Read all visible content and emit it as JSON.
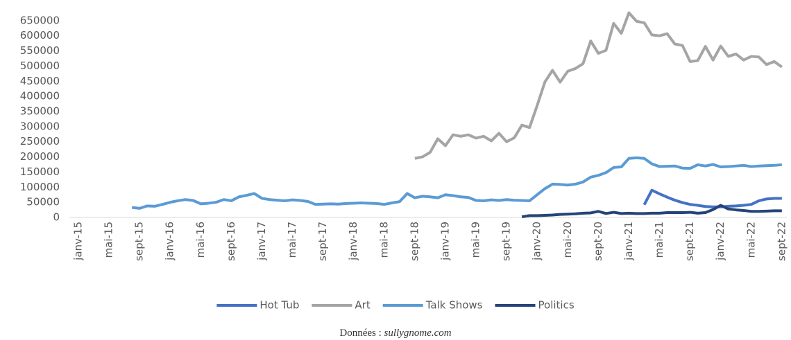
{
  "chart_data": {
    "type": "line",
    "categories": [
      "janv-15",
      null,
      null,
      null,
      "mai-15",
      null,
      null,
      null,
      "sept-15",
      null,
      null,
      null,
      "janv-16",
      null,
      null,
      null,
      "mai-16",
      null,
      null,
      null,
      "sept-16",
      null,
      null,
      null,
      "janv-17",
      null,
      null,
      null,
      "mai-17",
      null,
      null,
      null,
      "sept-17",
      null,
      null,
      null,
      "janv-18",
      null,
      null,
      null,
      "mai-18",
      null,
      null,
      null,
      "sept-18",
      null,
      null,
      null,
      "janv-19",
      null,
      null,
      null,
      "mai-19",
      null,
      null,
      null,
      "sept-19",
      null,
      null,
      null,
      "janv-20",
      null,
      null,
      null,
      "mai-20",
      null,
      null,
      null,
      "sept-20",
      null,
      null,
      null,
      "janv-21",
      null,
      null,
      null,
      "mai-21",
      null,
      null,
      null,
      "sept-21",
      null,
      null,
      null,
      "janv-22",
      null,
      null,
      null,
      "mai-22",
      null,
      null,
      null,
      "sept-22"
    ],
    "series": [
      {
        "name": "Hot Tub",
        "color": "#4472c4",
        "values": [
          null,
          null,
          null,
          null,
          null,
          null,
          null,
          null,
          null,
          null,
          null,
          null,
          null,
          null,
          null,
          null,
          null,
          null,
          null,
          null,
          null,
          null,
          null,
          null,
          null,
          null,
          null,
          null,
          null,
          null,
          null,
          null,
          null,
          null,
          null,
          null,
          null,
          null,
          null,
          null,
          null,
          null,
          null,
          null,
          null,
          null,
          null,
          null,
          null,
          null,
          null,
          null,
          null,
          null,
          null,
          null,
          null,
          null,
          null,
          null,
          null,
          null,
          null,
          null,
          null,
          null,
          null,
          null,
          null,
          null,
          null,
          null,
          null,
          null,
          42000,
          90000,
          78000,
          67000,
          57000,
          49000,
          43000,
          40000,
          36000,
          35000,
          35000,
          37000,
          38000,
          40000,
          43000,
          55000,
          61000,
          63000,
          63000
        ]
      },
      {
        "name": "Art",
        "color": "#a5a5a5",
        "values": [
          null,
          null,
          null,
          null,
          null,
          null,
          null,
          null,
          null,
          null,
          null,
          null,
          null,
          null,
          null,
          null,
          null,
          null,
          null,
          null,
          null,
          null,
          null,
          null,
          null,
          null,
          null,
          null,
          null,
          null,
          null,
          null,
          null,
          null,
          null,
          null,
          null,
          null,
          null,
          null,
          null,
          null,
          null,
          null,
          195000,
          200000,
          215000,
          260000,
          237000,
          273000,
          268000,
          273000,
          262000,
          268000,
          253000,
          278000,
          250000,
          263000,
          305000,
          297000,
          370000,
          447000,
          486000,
          447000,
          483000,
          492000,
          508000,
          583000,
          542000,
          552000,
          641000,
          608000,
          676000,
          648000,
          643000,
          603000,
          600000,
          607000,
          573000,
          568000,
          515000,
          518000,
          565000,
          520000,
          566000,
          532000,
          540000,
          520000,
          532000,
          530000,
          505000,
          515000,
          497000
        ]
      },
      {
        "name": "Talk Shows",
        "color": "#5b9bd5",
        "values": [
          null,
          null,
          null,
          null,
          null,
          null,
          null,
          33000,
          30000,
          38000,
          37000,
          43000,
          50000,
          55000,
          59000,
          56000,
          45000,
          47000,
          50000,
          59000,
          55000,
          68000,
          73000,
          79000,
          63000,
          59000,
          57000,
          55000,
          58000,
          56000,
          53000,
          43000,
          44000,
          45000,
          44000,
          46000,
          47000,
          48000,
          47000,
          46000,
          43000,
          48000,
          52000,
          79000,
          65000,
          70000,
          68000,
          65000,
          75000,
          72000,
          68000,
          66000,
          56000,
          55000,
          58000,
          56000,
          59000,
          57000,
          56000,
          55000,
          75000,
          95000,
          110000,
          109000,
          107000,
          110000,
          117000,
          133000,
          139000,
          148000,
          165000,
          167000,
          195000,
          197000,
          195000,
          177000,
          168000,
          169000,
          170000,
          163000,
          162000,
          174000,
          170000,
          175000,
          167000,
          168000,
          170000,
          172000,
          168000,
          170000,
          171000,
          172000,
          174000
        ]
      },
      {
        "name": "Politics",
        "color": "#264478",
        "values": [
          null,
          null,
          null,
          null,
          null,
          null,
          null,
          null,
          null,
          null,
          null,
          null,
          null,
          null,
          null,
          null,
          null,
          null,
          null,
          null,
          null,
          null,
          null,
          null,
          null,
          null,
          null,
          null,
          null,
          null,
          null,
          null,
          null,
          null,
          null,
          null,
          null,
          null,
          null,
          null,
          null,
          null,
          null,
          null,
          null,
          null,
          null,
          null,
          null,
          null,
          null,
          null,
          null,
          null,
          null,
          null,
          null,
          null,
          2000,
          6000,
          6000,
          7000,
          8000,
          10000,
          11000,
          12000,
          14000,
          15000,
          20000,
          13000,
          17000,
          13000,
          14000,
          13000,
          13000,
          14000,
          14000,
          16000,
          16000,
          16000,
          17000,
          14000,
          16000,
          26000,
          40000,
          28000,
          25000,
          23000,
          20000,
          20000,
          21000,
          22000,
          22000
        ]
      }
    ],
    "ylim": [
      0,
      700000
    ],
    "yticks": [
      0,
      50000,
      100000,
      150000,
      200000,
      250000,
      300000,
      350000,
      400000,
      450000,
      500000,
      550000,
      600000,
      650000
    ],
    "grid": false,
    "legend": "bottom",
    "source_label": "Données :",
    "source": "sullygnome.com"
  }
}
